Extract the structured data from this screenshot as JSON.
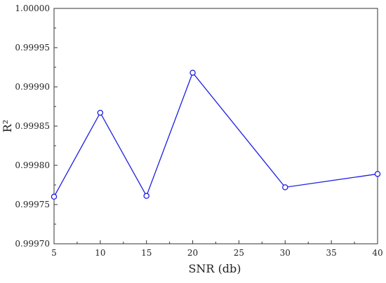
{
  "chart_data": {
    "type": "line",
    "title": "",
    "xlabel": "SNR (db)",
    "ylabel": "R²",
    "x": [
      5,
      10,
      15,
      20,
      30,
      40
    ],
    "series": [
      {
        "values": [
          0.99976,
          0.999867,
          0.999761,
          0.999918,
          0.999772,
          0.999789
        ],
        "color": "#1f1fe0",
        "marker": "circle-open"
      }
    ],
    "xlim": [
      5,
      40
    ],
    "ylim": [
      0.9997,
      1.0
    ],
    "xticks": [
      "5",
      "10",
      "15",
      "20",
      "25",
      "30",
      "35",
      "40"
    ],
    "yticks": [
      "0.99970",
      "0.99975",
      "0.99980",
      "0.99985",
      "0.99990",
      "0.99995",
      "1.00000"
    ],
    "grid": false,
    "legend": "none"
  }
}
